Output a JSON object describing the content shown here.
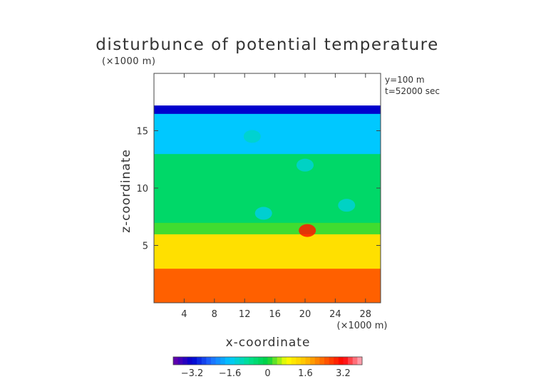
{
  "chart_data": {
    "type": "heatmap",
    "title": "disturbunce of potential temperature",
    "subtitle_left": "(×1000 m)",
    "annotation": {
      "line1": "y=100 m",
      "line2": "t=52000 sec"
    },
    "xlabel": "x-coordinate",
    "ylabel": "z-coordinate",
    "x_unit": "(×1000 m)",
    "xlim": [
      0,
      30
    ],
    "ylim": [
      0,
      20
    ],
    "xticks": [
      4,
      8,
      12,
      16,
      20,
      24,
      28
    ],
    "yticks": [
      5,
      10,
      15
    ],
    "top_of_data_z": 17.2,
    "colorbar": {
      "range": [
        -4,
        4
      ],
      "ticks": [
        "−3.2",
        "−1.6",
        "0",
        "1.6",
        "3.2"
      ],
      "tick_values": [
        -3.2,
        -1.6,
        0,
        1.6,
        3.2
      ],
      "colors": [
        "#6a00a8",
        "#0000cd",
        "#1e6bff",
        "#00c8ff",
        "#00e090",
        "#00d040",
        "#ffff00",
        "#ffc000",
        "#ff6000",
        "#ff0000",
        "#ffb0c0"
      ]
    },
    "field_description": {
      "bands": [
        {
          "z_from": 0,
          "z_to": 3,
          "value": 2.4
        },
        {
          "z_from": 3,
          "z_to": 6,
          "value": 1.2
        },
        {
          "z_from": 6,
          "z_to": 7,
          "value": 0.2
        },
        {
          "z_from": 7,
          "z_to": 13,
          "value": -0.4
        },
        {
          "z_from": 13,
          "z_to": 16.5,
          "value": -1.6
        },
        {
          "z_from": 16.5,
          "z_to": 17.2,
          "value": -3.2
        }
      ],
      "features": [
        {
          "x": 13.0,
          "z": 14.5,
          "value": -1.2
        },
        {
          "x": 20.3,
          "z": 6.3,
          "value": 3.0
        },
        {
          "x": 14.5,
          "z": 7.8,
          "value": -1.4
        },
        {
          "x": 25.5,
          "z": 8.5,
          "value": -1.3
        },
        {
          "x": 20.0,
          "z": 12.0,
          "value": -1.3
        }
      ]
    }
  }
}
